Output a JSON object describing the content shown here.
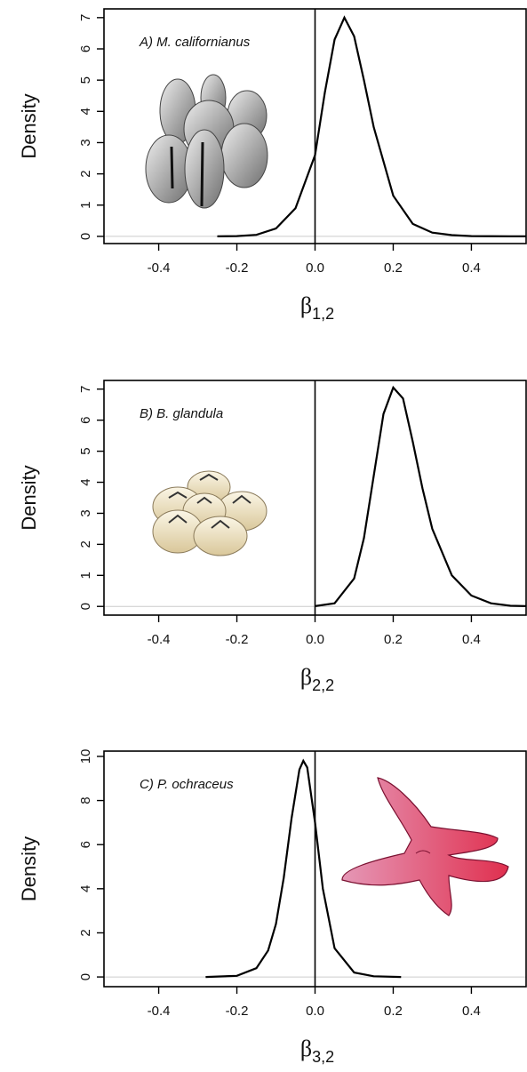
{
  "chart_data": [
    {
      "type": "line",
      "annotation": "A) M. californianus",
      "ylabel": "Density",
      "xlabel": "β",
      "xlabel_subscript": "1,2",
      "x": [
        -0.25,
        -0.2,
        -0.15,
        -0.1,
        -0.05,
        0,
        0.025,
        0.05,
        0.075,
        0.1,
        0.125,
        0.15,
        0.2,
        0.25,
        0.3,
        0.35,
        0.4,
        0.5,
        0.54
      ],
      "values": [
        0,
        0.01,
        0.05,
        0.25,
        0.9,
        2.6,
        4.6,
        6.3,
        7.0,
        6.4,
        5.0,
        3.5,
        1.3,
        0.4,
        0.12,
        0.04,
        0.01,
        0,
        0
      ],
      "color": "#000000",
      "vline": 0,
      "xlim": [
        -0.54,
        0.54
      ],
      "ylim": [
        -0.23,
        7.28
      ],
      "xticks": [
        -0.4,
        -0.2,
        {
          "value": 0,
          "label": "0.0"
        },
        0.2,
        0.4
      ],
      "yticks": [
        0,
        1,
        2,
        3,
        4,
        5,
        6,
        7
      ]
    },
    {
      "type": "line",
      "annotation": "B) B. glandula",
      "ylabel": "Density",
      "xlabel": "β",
      "xlabel_subscript": "2,2",
      "x": [
        0,
        0.05,
        0.1,
        0.125,
        0.15,
        0.175,
        0.2,
        0.225,
        0.25,
        0.275,
        0.3,
        0.35,
        0.4,
        0.45,
        0.5,
        0.54
      ],
      "values": [
        0.01,
        0.1,
        0.9,
        2.2,
        4.2,
        6.2,
        7.05,
        6.7,
        5.3,
        3.8,
        2.5,
        1.0,
        0.35,
        0.1,
        0.02,
        0.01
      ],
      "color": "#000000",
      "vline": 0,
      "xlim": [
        -0.54,
        0.54
      ],
      "ylim": [
        -0.28,
        7.28
      ],
      "xticks": [
        -0.4,
        -0.2,
        {
          "value": 0,
          "label": "0.0"
        },
        0.2,
        0.4
      ],
      "yticks": [
        0,
        1,
        2,
        3,
        4,
        5,
        6,
        7
      ]
    },
    {
      "type": "line",
      "annotation": "C) P. ochraceus",
      "ylabel": "Density",
      "xlabel": "β",
      "xlabel_subscript": "3,2",
      "x": [
        -0.28,
        -0.2,
        -0.15,
        -0.12,
        -0.1,
        -0.08,
        -0.06,
        -0.04,
        -0.03,
        -0.02,
        0,
        0.02,
        0.05,
        0.1,
        0.15,
        0.22
      ],
      "values": [
        0,
        0.05,
        0.4,
        1.2,
        2.4,
        4.5,
        7.2,
        9.4,
        9.8,
        9.5,
        7.0,
        4.0,
        1.3,
        0.2,
        0.03,
        0
      ],
      "color": "#000000",
      "vline": 0,
      "xlim": [
        -0.54,
        0.54
      ],
      "ylim": [
        -0.44,
        10.24
      ],
      "xticks": [
        -0.4,
        -0.2,
        {
          "value": 0,
          "label": "0.0"
        },
        0.2,
        0.4
      ],
      "yticks": [
        0,
        2,
        4,
        6,
        8,
        10
      ]
    }
  ]
}
